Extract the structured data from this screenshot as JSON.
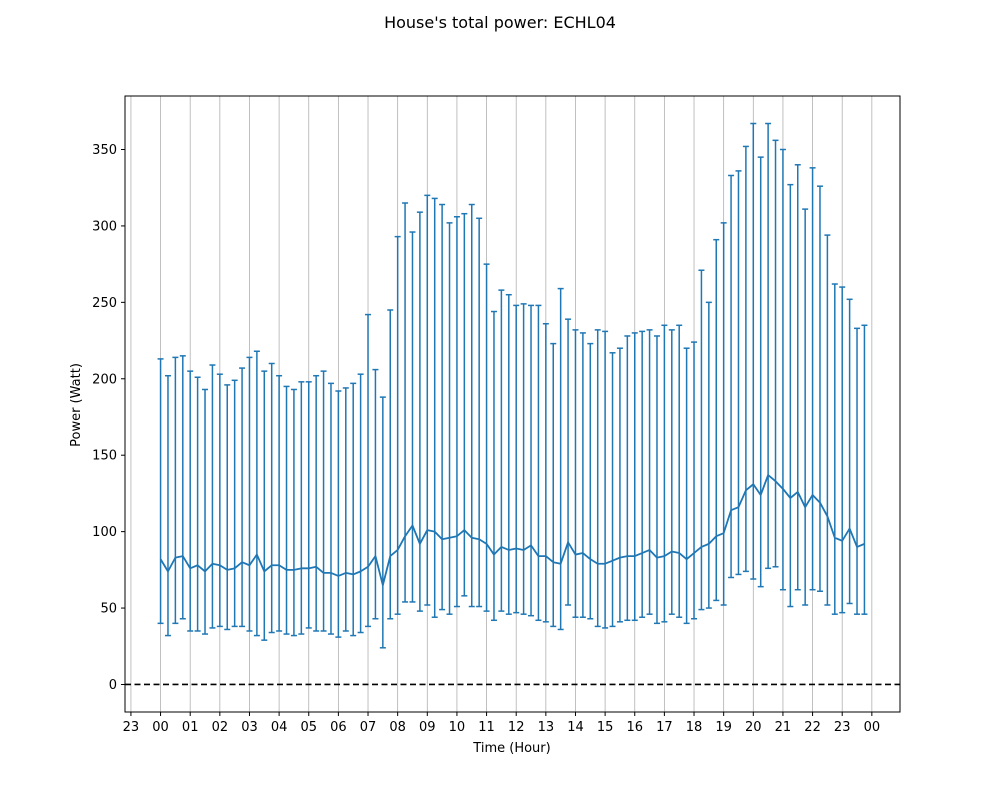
{
  "chart_data": {
    "type": "line",
    "title": "House's total power: ECHL04",
    "xlabel": "Time (Hour)",
    "ylabel": "Power (Watt)",
    "xlim": [
      -1.2,
      24.95
    ],
    "ylim": [
      -18,
      385
    ],
    "x_ticks": [
      -1,
      0,
      1,
      2,
      3,
      4,
      5,
      6,
      7,
      8,
      9,
      10,
      11,
      12,
      13,
      14,
      15,
      16,
      17,
      18,
      19,
      20,
      21,
      22,
      23,
      24
    ],
    "x_tick_labels": [
      "23",
      "00",
      "01",
      "02",
      "03",
      "04",
      "05",
      "06",
      "07",
      "08",
      "09",
      "10",
      "11",
      "12",
      "13",
      "14",
      "15",
      "16",
      "17",
      "18",
      "19",
      "20",
      "21",
      "22",
      "23",
      "00"
    ],
    "y_ticks": [
      0,
      50,
      100,
      150,
      200,
      250,
      300,
      350
    ],
    "y_tick_labels": [
      "0",
      "50",
      "100",
      "150",
      "200",
      "250",
      "300",
      "350"
    ],
    "grid": "vertical",
    "reference_line": {
      "y": 0,
      "style": "dashed",
      "color": "#000000"
    },
    "color": "#1f77b4",
    "series": [
      {
        "x": [
          0,
          0.25,
          0.5,
          0.75,
          1,
          1.25,
          1.5,
          1.75,
          2,
          2.25,
          2.5,
          2.75,
          3,
          3.25,
          3.5,
          3.75,
          4,
          4.25,
          4.5,
          4.75,
          5,
          5.25,
          5.5,
          5.75,
          6,
          6.25,
          6.5,
          6.75,
          7,
          7.25,
          7.5,
          7.75,
          8,
          8.25,
          8.5,
          8.75,
          9,
          9.25,
          9.5,
          9.75,
          10,
          10.25,
          10.5,
          10.75,
          11,
          11.25,
          11.5,
          11.75,
          12,
          12.25,
          12.5,
          12.75,
          13,
          13.25,
          13.5,
          13.75,
          14,
          14.25,
          14.5,
          14.75,
          15,
          15.25,
          15.5,
          15.75,
          16,
          16.25,
          16.5,
          16.75,
          17,
          17.25,
          17.5,
          17.75,
          18,
          18.25,
          18.5,
          18.75,
          19,
          19.25,
          19.5,
          19.75,
          20,
          20.25,
          20.5,
          20.75,
          21,
          21.25,
          21.5,
          21.75,
          22,
          22.25,
          22.5,
          22.75,
          23,
          23.25,
          23.5,
          23.75
        ],
        "mean": [
          82,
          74,
          83,
          84,
          76,
          78,
          74,
          79,
          78,
          75,
          76,
          80,
          78,
          85,
          74,
          78,
          78,
          75,
          75,
          76,
          76,
          77,
          73,
          73,
          71,
          73,
          72,
          74,
          77,
          84,
          65,
          84,
          88,
          97,
          104,
          92,
          101,
          100,
          95,
          96,
          97,
          101,
          96,
          95,
          92,
          85,
          90,
          88,
          89,
          88,
          91,
          84,
          84,
          80,
          79,
          93,
          85,
          86,
          82,
          79,
          79,
          81,
          83,
          84,
          84,
          86,
          88,
          83,
          84,
          87,
          86,
          82,
          86,
          90,
          92,
          97,
          99,
          114,
          116,
          127,
          131,
          124,
          137,
          133,
          128,
          122,
          126,
          116,
          124,
          119,
          110,
          96,
          94,
          102,
          90,
          92
        ],
        "lower": [
          40,
          32,
          40,
          43,
          35,
          35,
          33,
          37,
          38,
          36,
          38,
          38,
          35,
          32,
          29,
          34,
          35,
          33,
          32,
          33,
          37,
          35,
          35,
          33,
          31,
          35,
          32,
          34,
          38,
          43,
          24,
          43,
          46,
          54,
          54,
          48,
          52,
          44,
          49,
          46,
          51,
          58,
          51,
          51,
          48,
          42,
          48,
          46,
          47,
          46,
          45,
          42,
          41,
          38,
          36,
          52,
          44,
          44,
          43,
          38,
          37,
          38,
          41,
          42,
          42,
          44,
          46,
          40,
          41,
          46,
          44,
          40,
          43,
          49,
          50,
          55,
          52,
          70,
          72,
          74,
          69,
          64,
          76,
          77,
          62,
          51,
          62,
          52,
          62,
          61,
          52,
          46,
          47,
          53,
          46,
          46
        ],
        "upper": [
          213,
          202,
          214,
          215,
          205,
          201,
          193,
          209,
          203,
          196,
          199,
          207,
          214,
          218,
          205,
          210,
          202,
          195,
          193,
          198,
          198,
          202,
          205,
          197,
          192,
          194,
          197,
          203,
          242,
          206,
          188,
          245,
          293,
          315,
          296,
          309,
          320,
          318,
          314,
          302,
          306,
          308,
          314,
          305,
          275,
          244,
          258,
          255,
          248,
          249,
          248,
          248,
          236,
          223,
          259,
          239,
          232,
          230,
          223,
          232,
          231,
          217,
          220,
          228,
          230,
          231,
          232,
          228,
          235,
          232,
          235,
          220,
          224,
          271,
          250,
          291,
          302,
          333,
          336,
          352,
          367,
          345,
          367,
          356,
          350,
          327,
          340,
          311,
          338,
          326,
          294,
          262,
          260,
          252,
          233,
          235
        ]
      }
    ]
  }
}
